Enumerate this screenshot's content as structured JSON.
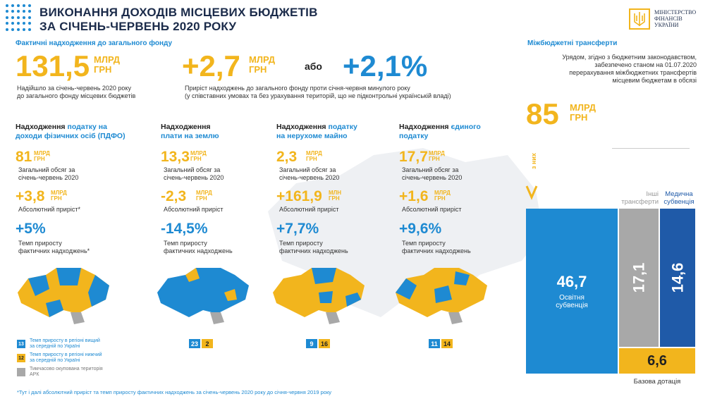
{
  "header": {
    "title_line1": "ВИКОНАННЯ ДОХОДІВ МІСЦЕВИХ БЮДЖЕТІВ",
    "title_line2": "ЗА СІЧЕНЬ-ЧЕРВЕНЬ 2020 РОКУ",
    "ministry_line1": "МІНІСТЕРСТВО",
    "ministry_line2": "ФІНАНСІВ",
    "ministry_line3": "УКРАЇНИ"
  },
  "general_fund": {
    "subtitle": "Фактичні надходження до загального фонду",
    "total_value": "131,5",
    "total_unit1": "МЛРД",
    "total_unit2": "ГРН",
    "total_desc1": "Надійшло за січень-червень 2020 року",
    "total_desc2": "до загального фонду місцевих бюджетів",
    "growth_value": "+2,7",
    "growth_unit1": "МЛРД",
    "growth_unit2": "ГРН",
    "or_label": "або",
    "growth_pct": "+2,1%",
    "growth_desc1": "Приріст надходжень до загального фонду проти січня-червня минулого року",
    "growth_desc2": "(у співставних умовах та без урахування територій, що не підконтрольні українській владі)"
  },
  "transfers": {
    "subtitle": "Міжбюджетні трансферти",
    "desc1": "Урядом, згідно з бюджетним законодавством,",
    "desc2": "забезпечено станом на 01.07.2020",
    "desc3": "перерахування міжбюджетних трансфертів",
    "desc4": "місцевим бюджетам в обсязі",
    "value": "85",
    "unit1": "МЛРД",
    "unit2": "ГРН",
    "of_them": "з них",
    "other_label1": "Інші",
    "other_label2": "трансферти",
    "medical_label1": "Медична",
    "medical_label2": "субвенція",
    "edu_value": "46,7",
    "edu_label1": "Освітня",
    "edu_label2": "субвенція",
    "other_value": "17,1",
    "medical_value": "14,6",
    "base_value": "6,6",
    "base_label": "Базова дотація"
  },
  "columns": [
    {
      "head_plain": "Надходження",
      "head_hl1": "податку на",
      "head_hl2": "доходи фізичних осіб (ПДФО)",
      "total": "81",
      "total_unit1": "МЛРД",
      "total_unit2": "ГРН",
      "total_lbl1": "Загальний обсяг за",
      "total_lbl2": "січень-червень 2020",
      "abs": "+3,8",
      "abs_unit1": "МЛРД",
      "abs_unit2": "ГРН",
      "abs_lbl": "Абсолютний приріст*",
      "pct": "+5%",
      "pct_lbl1": "Темп приросту",
      "pct_lbl2": "фактичних надходжень*",
      "badge_blue": "",
      "badge_yellow": ""
    },
    {
      "head_plain": "Надходження",
      "head_hl1": "",
      "head_hl2": "плати на землю",
      "total": "13,3",
      "total_unit1": "МЛРД",
      "total_unit2": "ГРН",
      "total_lbl1": "Загальний обсяг за",
      "total_lbl2": "січень-червень 2020",
      "abs": "-2,3",
      "abs_unit1": "МЛРД",
      "abs_unit2": "ГРН",
      "abs_lbl": "Абсолютний приріст",
      "pct": "-14,5%",
      "pct_lbl1": "Темп приросту",
      "pct_lbl2": "фактичних надходжень",
      "badge_blue": "23",
      "badge_yellow": "2"
    },
    {
      "head_plain": "Надходження",
      "head_hl1": "податку",
      "head_hl2": "на нерухоме майно",
      "total": "2,3",
      "total_unit1": "МЛРД",
      "total_unit2": "ГРН",
      "total_lbl1": "Загальний обсяг за",
      "total_lbl2": "січень-червень 2020",
      "abs": "+161,9",
      "abs_unit1": "МЛН",
      "abs_unit2": "ГРН",
      "abs_lbl": "Абсолютний приріст",
      "pct": "+7,7%",
      "pct_lbl1": "Темп приросту",
      "pct_lbl2": "фактичних надходжень",
      "badge_blue": "9",
      "badge_yellow": "16"
    },
    {
      "head_plain": "Надходження",
      "head_hl1": "єдиного",
      "head_hl2": "податку",
      "total": "17,7",
      "total_unit1": "МЛРД",
      "total_unit2": "ГРН",
      "total_lbl1": "Загальний обсяг за",
      "total_lbl2": "січень-червень 2020",
      "abs": "+1,6",
      "abs_unit1": "МЛРД",
      "abs_unit2": "ГРН",
      "abs_lbl": "Абсолютний приріст",
      "pct": "+9,6%",
      "pct_lbl1": "Темп приросту",
      "pct_lbl2": "фактичних надходжень",
      "badge_blue": "11",
      "badge_yellow": "14"
    }
  ],
  "legend": {
    "blue_num": "13",
    "blue_text1": "Темп приросту в регіоні вищий",
    "blue_text2": "за середній по Україні",
    "yellow_num": "12",
    "yellow_text1": "Темп приросту в регіоні нижчий",
    "yellow_text2": "за середній по Україні",
    "gray_text1": "Тимчасово окупована територія",
    "gray_text2": "АРК"
  },
  "footnote": "*Тут і далі абсолютний приріст та темп приросту фактичних надходжень за січень-червень 2020 року до січня-червня 2019 року",
  "colors": {
    "blue": "#1e8ad2",
    "yellow": "#f2b51d",
    "gray": "#a8a8a8",
    "dark_blue": "#1f5aa8",
    "navy": "#1b2b4a"
  }
}
